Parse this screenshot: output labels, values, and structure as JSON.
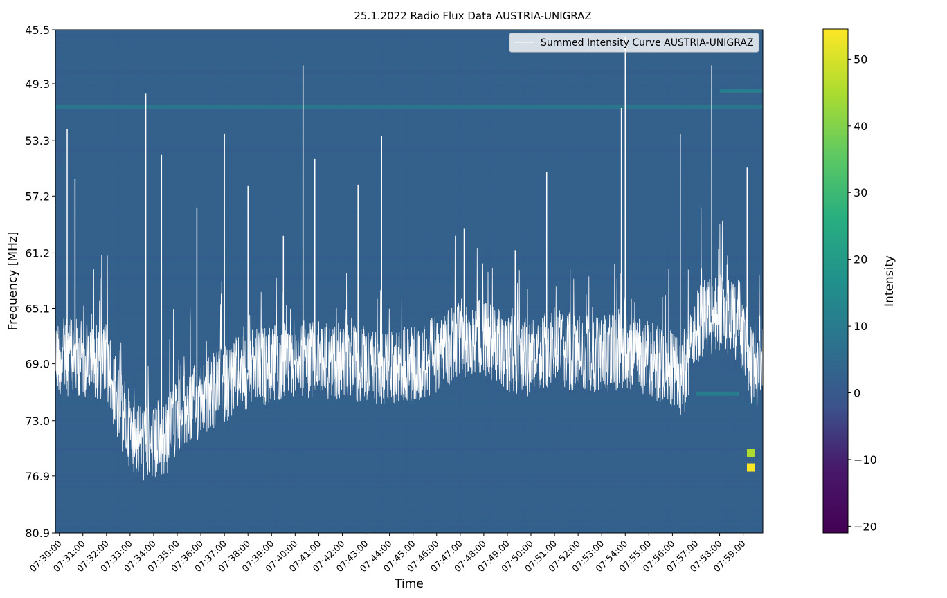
{
  "chart_data": {
    "type": "heatmap",
    "title": "25.1.2022 Radio Flux Data AUSTRIA-UNIGRAZ",
    "xlabel": "Time",
    "ylabel": "Frequency [MHz]",
    "colorbar_label": "Intensity",
    "colormap": "viridis",
    "clim": [
      -21,
      54.5
    ],
    "colorbar_ticks": [
      -20,
      -10,
      0,
      10,
      20,
      30,
      40,
      50
    ],
    "colorbar_tick_labels": [
      "−20",
      "−10",
      "0",
      "10",
      "20",
      "30",
      "40",
      "50"
    ],
    "y_ticks": [
      45.5,
      49.3,
      53.3,
      57.2,
      61.2,
      65.1,
      69.0,
      73.0,
      76.9,
      80.9
    ],
    "y_tick_labels": [
      "45.5",
      "49.3",
      "53.3",
      "57.2",
      "61.2",
      "65.1",
      "69.0",
      "73.0",
      "76.9",
      "80.9"
    ],
    "y_inverted": true,
    "x_range": [
      "07:29:50",
      "07:59:50"
    ],
    "x_ticks": [
      "07:30:00",
      "07:31:00",
      "07:32:00",
      "07:33:00",
      "07:34:00",
      "07:35:00",
      "07:36:00",
      "07:37:00",
      "07:38:00",
      "07:39:00",
      "07:40:00",
      "07:41:00",
      "07:42:00",
      "07:43:00",
      "07:44:00",
      "07:45:00",
      "07:46:00",
      "07:47:00",
      "07:48:00",
      "07:49:00",
      "07:50:00",
      "07:51:00",
      "07:52:00",
      "07:53:00",
      "07:54:00",
      "07:55:00",
      "07:56:00",
      "07:57:00",
      "07:58:00",
      "07:59:00"
    ],
    "background_intensity": 2,
    "features": [
      {
        "kind": "horizontal band",
        "frequency_mhz": 50.9,
        "intensity": 10
      },
      {
        "kind": "horizontal band",
        "frequency_mhz": 49.8,
        "intensity": 12,
        "time_range": [
          "07:58:00",
          "07:59:50"
        ]
      },
      {
        "kind": "horizontal band",
        "frequency_mhz": 71.1,
        "intensity": 12,
        "time_range": [
          "07:57:00",
          "07:58:50"
        ]
      },
      {
        "kind": "bright spot",
        "frequency_mhz": 76.3,
        "time": "07:59:20",
        "intensity": 54
      },
      {
        "kind": "bright spot",
        "frequency_mhz": 75.3,
        "time": "07:59:20",
        "intensity": 45
      }
    ],
    "series": [
      {
        "name": "Summed Intensity Curve AUSTRIA-UNIGRAZ",
        "color": "#ffffff",
        "type": "line",
        "x": [
          "07:30:00",
          "07:31:00",
          "07:32:00",
          "07:32:30",
          "07:33:00",
          "07:33:30",
          "07:34:00",
          "07:34:30",
          "07:35:00",
          "07:36:00",
          "07:37:00",
          "07:38:00",
          "07:39:00",
          "07:40:00",
          "07:41:00",
          "07:42:00",
          "07:43:00",
          "07:44:00",
          "07:45:00",
          "07:46:00",
          "07:47:00",
          "07:48:00",
          "07:49:00",
          "07:50:00",
          "07:51:00",
          "07:52:00",
          "07:53:00",
          "07:54:00",
          "07:55:00",
          "07:56:00",
          "07:56:30",
          "07:57:00",
          "07:58:00",
          "07:58:30",
          "07:59:00",
          "07:59:30",
          "07:59:50"
        ],
        "y": [
          68.5,
          68.6,
          68.9,
          72.0,
          73.6,
          74.6,
          74.8,
          74.5,
          72.6,
          71.6,
          70.4,
          69.4,
          69.1,
          68.6,
          68.7,
          68.9,
          69.1,
          69.2,
          69.0,
          68.4,
          67.4,
          67.0,
          68.2,
          68.6,
          67.8,
          68.3,
          68.3,
          68.2,
          68.6,
          69.4,
          70.0,
          66.4,
          65.3,
          65.8,
          67.3,
          69.9,
          68.4
        ]
      }
    ],
    "spikes": [
      {
        "time": "07:30:20",
        "y_top": 52.5
      },
      {
        "time": "07:30:40",
        "y_top": 56.0
      },
      {
        "time": "07:33:40",
        "y_top": 50.0
      },
      {
        "time": "07:34:20",
        "y_top": 54.3
      },
      {
        "time": "07:35:50",
        "y_top": 58.0
      },
      {
        "time": "07:37:00",
        "y_top": 52.8
      },
      {
        "time": "07:38:00",
        "y_top": 56.5
      },
      {
        "time": "07:39:30",
        "y_top": 60.0
      },
      {
        "time": "07:40:20",
        "y_top": 48.0
      },
      {
        "time": "07:40:50",
        "y_top": 54.6
      },
      {
        "time": "07:42:40",
        "y_top": 56.4
      },
      {
        "time": "07:43:40",
        "y_top": 53.0
      },
      {
        "time": "07:47:10",
        "y_top": 59.5
      },
      {
        "time": "07:49:20",
        "y_top": 61.0
      },
      {
        "time": "07:50:40",
        "y_top": 55.5
      },
      {
        "time": "07:53:50",
        "y_top": 51.0
      },
      {
        "time": "07:54:00",
        "y_top": 46.0
      },
      {
        "time": "07:56:20",
        "y_top": 52.8
      },
      {
        "time": "07:57:40",
        "y_top": 48.0
      },
      {
        "time": "07:59:10",
        "y_top": 55.2
      }
    ],
    "legend": {
      "placement": "top-right",
      "entries": [
        "Summed Intensity Curve AUSTRIA-UNIGRAZ"
      ]
    },
    "grid": false
  }
}
